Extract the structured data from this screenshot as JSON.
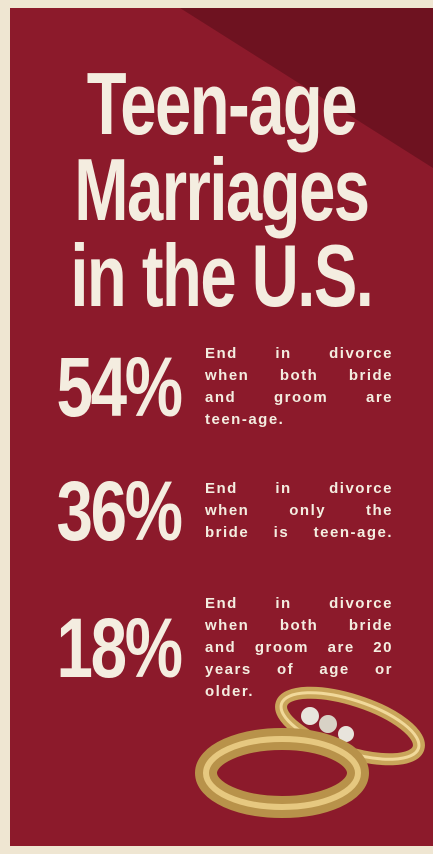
{
  "title": [
    "Teen-age",
    "Marriages",
    "in the U.S."
  ],
  "stats": [
    {
      "value": "54%",
      "lines": [
        "End in divorce",
        "when both bride",
        "and groom are",
        "teen-age."
      ]
    },
    {
      "value": "36%",
      "lines": [
        "End in divorce",
        "when only the",
        "bride is teen-age."
      ]
    },
    {
      "value": "18%",
      "lines": [
        "End in divorce",
        "when both bride",
        "and groom are 20",
        "years of age or",
        "older."
      ]
    }
  ]
}
